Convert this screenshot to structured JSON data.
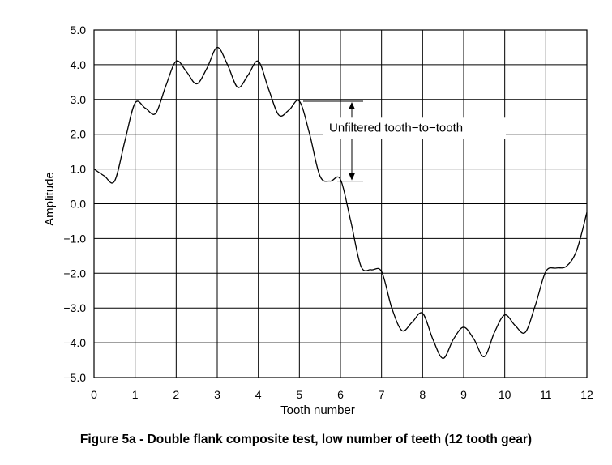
{
  "figure_caption": "Figure 5a - Double flank composite test, low number of teeth (12 tooth gear)",
  "chart_data": {
    "type": "line",
    "xlabel": "Tooth number",
    "ylabel": "Amplitude",
    "xlim": [
      0,
      12
    ],
    "ylim": [
      -5.0,
      5.0
    ],
    "x_ticks": [
      0,
      1,
      2,
      3,
      4,
      5,
      6,
      7,
      8,
      9,
      10,
      11,
      12
    ],
    "y_ticks": [
      5.0,
      4.0,
      3.0,
      2.0,
      1.0,
      0.0,
      -1.0,
      -2.0,
      -3.0,
      -4.0,
      -5.0
    ],
    "x_tick_labels": [
      "0",
      "1",
      "2",
      "3",
      "4",
      "5",
      "6",
      "7",
      "8",
      "9",
      "10",
      "11",
      "12"
    ],
    "y_tick_labels": [
      "5.0",
      "4.0",
      "3.0",
      "2.0",
      "1.0",
      "0.0",
      "−1.0",
      "−2.0",
      "−3.0",
      "−4.0",
      "−5.0"
    ],
    "grid": true,
    "series": [
      {
        "x": [
          0,
          0.25,
          0.5,
          0.75,
          1,
          1.25,
          1.5,
          1.75,
          2,
          2.25,
          2.5,
          2.75,
          3,
          3.25,
          3.5,
          3.75,
          4,
          4.25,
          4.5,
          4.75,
          5,
          5.25,
          5.5,
          5.75,
          6,
          6.25,
          6.5,
          6.75,
          7,
          7.25,
          7.5,
          7.75,
          8,
          8.25,
          8.5,
          8.75,
          9,
          9.25,
          9.5,
          9.75,
          10,
          10.25,
          10.5,
          10.75,
          11,
          11.25,
          11.5,
          11.75,
          12
        ],
        "y": [
          1.0,
          0.8,
          0.65,
          1.8,
          2.9,
          2.75,
          2.6,
          3.4,
          4.1,
          3.8,
          3.45,
          3.9,
          4.5,
          4.0,
          3.35,
          3.7,
          4.1,
          3.3,
          2.55,
          2.7,
          2.95,
          2.0,
          0.8,
          0.65,
          0.7,
          -0.5,
          -1.8,
          -1.9,
          -1.95,
          -3.0,
          -3.65,
          -3.4,
          -3.15,
          -3.9,
          -4.45,
          -3.9,
          -3.55,
          -3.9,
          -4.4,
          -3.7,
          -3.2,
          -3.5,
          -3.7,
          -2.9,
          -1.95,
          -1.85,
          -1.8,
          -1.35,
          -0.25
        ]
      }
    ],
    "annotation": {
      "text": "Unfiltered tooth−to−tooth",
      "upper_y": 2.95,
      "lower_y": 0.65
    }
  }
}
